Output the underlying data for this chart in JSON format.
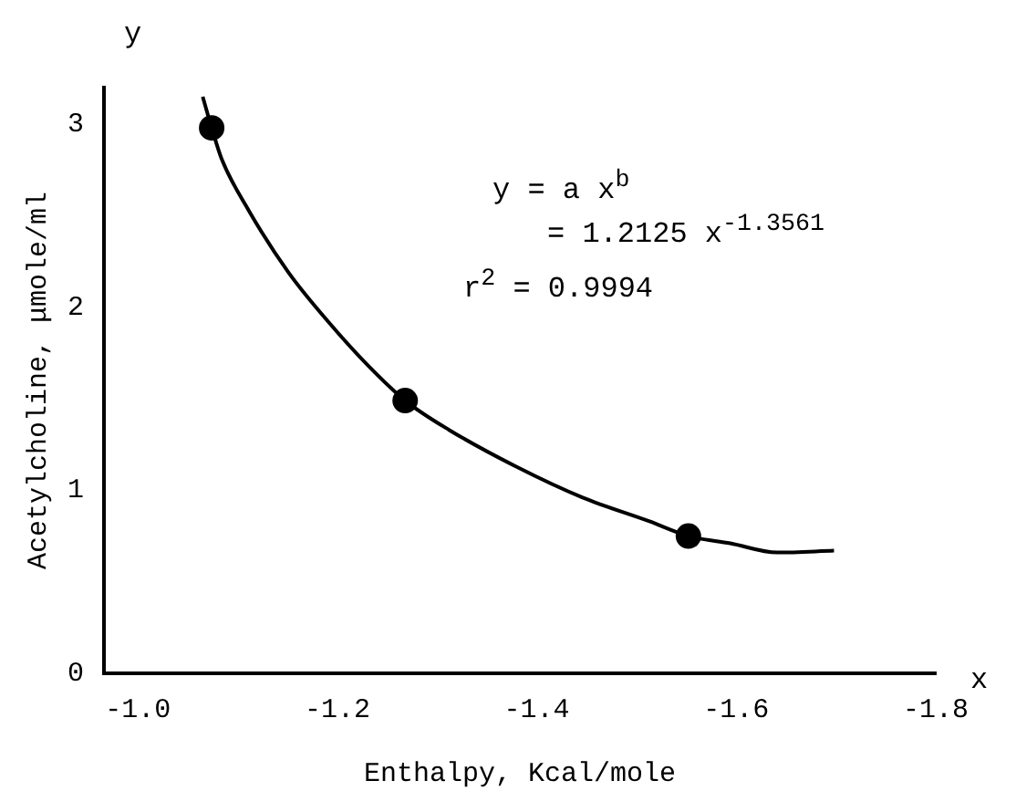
{
  "chart_data": {
    "type": "scatter",
    "xlabel": "Enthalpy, Kcal/mole",
    "ylabel": "Acetylcholine, μmole/ml",
    "xlim": [
      -0.966,
      -1.8
    ],
    "ylim": [
      0,
      3.2
    ],
    "xticks": [
      {
        "value": -1.0,
        "label": "-1.0"
      },
      {
        "value": -1.2,
        "label": "-1.2"
      },
      {
        "value": -1.4,
        "label": "-1.4"
      },
      {
        "value": -1.6,
        "label": "-1.6"
      },
      {
        "value": -1.8,
        "label": "-1.8"
      }
    ],
    "yticks": [
      0,
      1,
      2,
      3
    ],
    "grid": false,
    "legend": false,
    "series": [
      {
        "color": "#000000",
        "marker": "circle",
        "x": [
          -1.074,
          -1.268,
          -1.552
        ],
        "values": [
          2.98,
          1.49,
          0.75
        ]
      },
      {
        "type": "line",
        "color": "#000000",
        "marker": "none",
        "line_style": "solid",
        "x": [
          -1.065,
          -1.074,
          -1.084,
          -1.111,
          -1.151,
          -1.191,
          -1.231,
          -1.268,
          -1.312,
          -1.379,
          -1.446,
          -1.513,
          -1.552,
          -1.594,
          -1.641,
          -1.698
        ],
        "values": [
          3.15,
          2.98,
          2.81,
          2.53,
          2.19,
          1.92,
          1.68,
          1.49,
          1.33,
          1.13,
          0.96,
          0.83,
          0.75,
          0.71,
          0.66,
          0.67
        ]
      }
    ],
    "annotations": [
      "y",
      "x",
      "y = a x$^{b}$",
      "= 1.2125 x$^{-1.3561}$",
      "r$^{2}$ = 0.9994"
    ]
  }
}
